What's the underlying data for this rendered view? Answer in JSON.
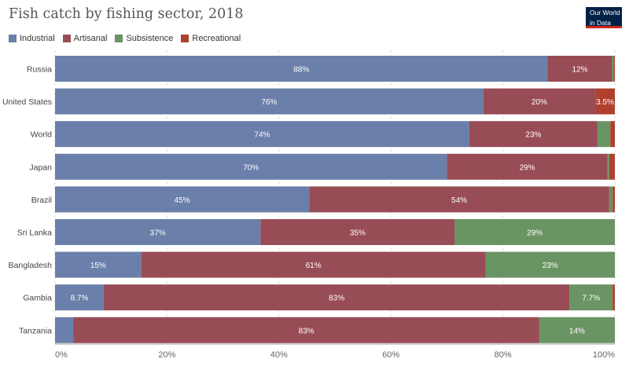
{
  "header": {
    "title": "Fish catch by fishing sector, 2018",
    "logo_line1": "Our World",
    "logo_line2": "in Data"
  },
  "colors": {
    "Industrial": "#6a7fa9",
    "Artisanal": "#984c55",
    "Subsistence": "#6a9463",
    "Recreational": "#b0402e",
    "logo_bg": "#002147",
    "logo_bar": "#ce261e"
  },
  "chart_data": {
    "type": "bar",
    "orientation": "horizontal",
    "stacked": true,
    "title": "Fish catch by fishing sector, 2018",
    "xlabel": "",
    "ylabel": "",
    "xlim": [
      0,
      100
    ],
    "x_ticks": [
      "0%",
      "20%",
      "40%",
      "60%",
      "80%",
      "100%"
    ],
    "grid": "vertical dashed",
    "legend": "top-left",
    "categories": [
      "Russia",
      "United States",
      "World",
      "Japan",
      "Brazil",
      "Sri Lanka",
      "Bangladesh",
      "Gambia",
      "Tanzania"
    ],
    "series": [
      {
        "name": "Industrial",
        "values": [
          88,
          76.5,
          74,
          70,
          45.4,
          36.7,
          15.4,
          8.7,
          3.3
        ],
        "labels": [
          "88%",
          "76%",
          "74%",
          "70%",
          "45%",
          "37%",
          "15%",
          "8.7%",
          ""
        ]
      },
      {
        "name": "Artisanal",
        "values": [
          11.5,
          20,
          22.9,
          28.7,
          53.6,
          34.7,
          61.5,
          83.2,
          83.2
        ],
        "labels": [
          "12%",
          "20%",
          "23%",
          "29%",
          "54%",
          "35%",
          "61%",
          "83%",
          "83%"
        ]
      },
      {
        "name": "Subsistence",
        "values": [
          0.3,
          0,
          2.3,
          0.3,
          0.6,
          28.6,
          23.1,
          7.7,
          13.5
        ],
        "labels": [
          "",
          "",
          "",
          "",
          "",
          "29%",
          "23%",
          "7.7%",
          "14%"
        ]
      },
      {
        "name": "Recreational",
        "values": [
          0.2,
          3.5,
          0.8,
          1,
          0.4,
          0,
          0,
          0.4,
          0
        ],
        "labels": [
          "",
          "3.5%",
          "",
          "",
          "",
          "",
          "",
          "",
          ""
        ]
      }
    ]
  }
}
